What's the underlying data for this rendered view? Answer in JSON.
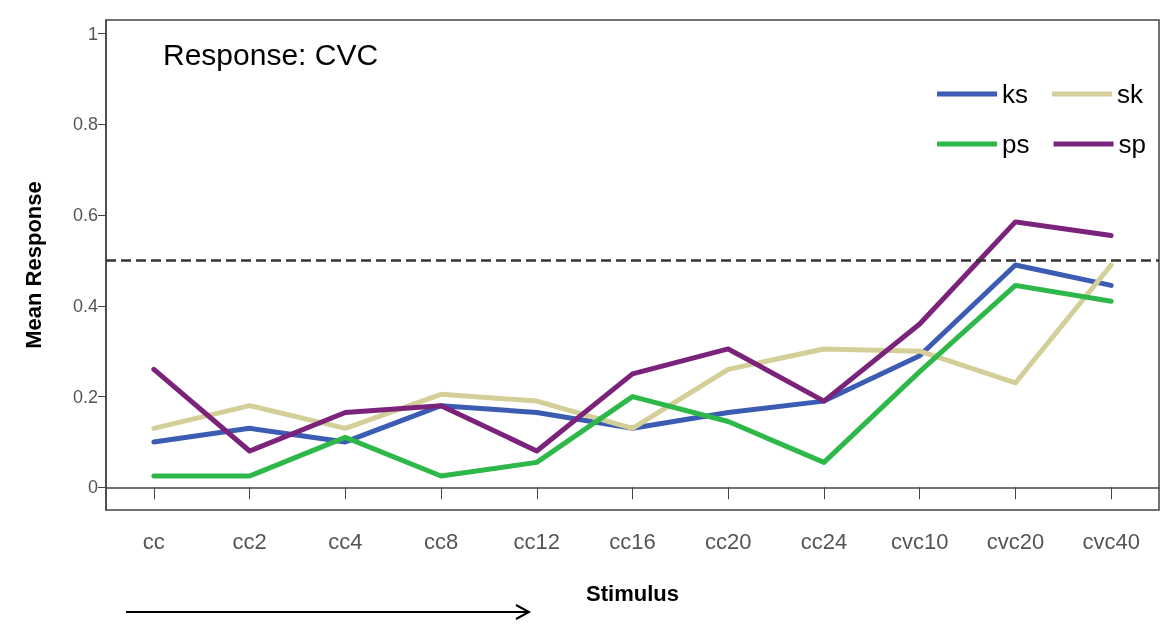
{
  "chart_data": {
    "type": "line",
    "title": "Response: CVC",
    "xlabel": "Stimulus",
    "ylabel": "Mean Response",
    "categories": [
      "cc",
      "cc2",
      "cc4",
      "cc8",
      "cc12",
      "cc16",
      "cc20",
      "cc24",
      "cvc10",
      "cvc20",
      "cvc40"
    ],
    "series": [
      {
        "name": "ks",
        "color": "#3c5cb4",
        "values": [
          0.1,
          0.13,
          0.1,
          0.18,
          0.165,
          0.13,
          0.165,
          0.19,
          0.29,
          0.49,
          0.445
        ]
      },
      {
        "name": "sk",
        "color": "#d4cf98",
        "values": [
          0.13,
          0.18,
          0.13,
          0.205,
          0.19,
          0.13,
          0.26,
          0.305,
          0.3,
          0.23,
          0.49
        ]
      },
      {
        "name": "ps",
        "color": "#2eb84a",
        "values": [
          0.025,
          0.025,
          0.11,
          0.025,
          0.055,
          0.2,
          0.145,
          0.055,
          0.255,
          0.445,
          0.41
        ]
      },
      {
        "name": "sp",
        "color": "#7b237b",
        "values": [
          0.26,
          0.08,
          0.165,
          0.18,
          0.08,
          0.25,
          0.305,
          0.19,
          0.36,
          0.585,
          0.555
        ]
      }
    ],
    "ylim": [
      -0.05,
      1.03
    ],
    "yticks": [
      0,
      0.2,
      0.4,
      0.6,
      0.8,
      1
    ],
    "ref_lines": [
      {
        "axis": "y",
        "value": 0.5,
        "color": "#333333",
        "line_style": "dashed"
      }
    ],
    "legend": "top right",
    "marker": "none",
    "line_style": "solid"
  }
}
